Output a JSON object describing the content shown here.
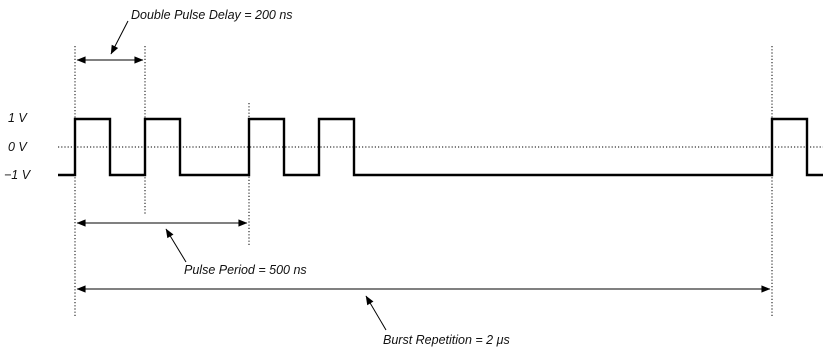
{
  "levels": {
    "high": "1 V",
    "zero": "0 V",
    "low": "−1 V"
  },
  "annotations": {
    "double_pulse_delay": "Double Pulse Delay = 200 ns",
    "pulse_period": "Pulse Period = 500 ns",
    "burst_repetition": "Burst Repetition = 2 μs"
  },
  "colors": {
    "line": "#000000"
  }
}
